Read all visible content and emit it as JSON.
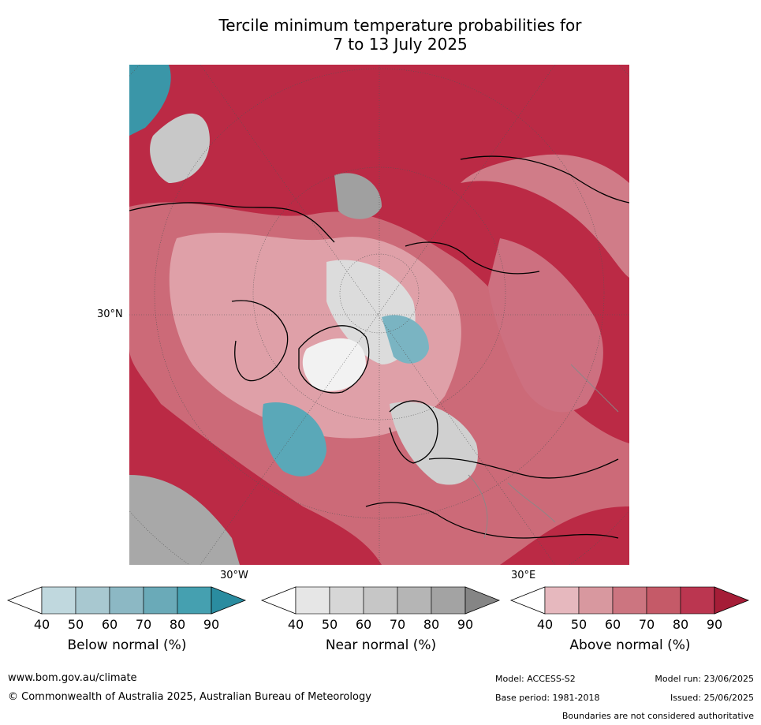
{
  "title_line1": "Tercile minimum temperature probabilities for",
  "title_line2": "7 to 13 July 2025",
  "map": {
    "lat_label": "30°N",
    "lon_label_west": "30°W",
    "lon_label_east": "30°E"
  },
  "legends": [
    {
      "title": "Below normal (%)",
      "ticks": [
        "40",
        "50",
        "60",
        "70",
        "80",
        "90"
      ],
      "colors": [
        "#c0d8de",
        "#a8c8d0",
        "#8cb8c4",
        "#6aaab8",
        "#45a0b0",
        "#2a8ca0"
      ]
    },
    {
      "title": "Near normal (%)",
      "ticks": [
        "40",
        "50",
        "60",
        "70",
        "80",
        "90"
      ],
      "colors": [
        "#e6e6e6",
        "#d6d6d6",
        "#c6c6c6",
        "#b5b5b5",
        "#a3a3a3",
        "#858585"
      ]
    },
    {
      "title": "Above normal (%)",
      "ticks": [
        "40",
        "50",
        "60",
        "70",
        "80",
        "90"
      ],
      "colors": [
        "#e6b8be",
        "#d8989f",
        "#cc7580",
        "#c55a68",
        "#bb3650",
        "#a51d37"
      ]
    }
  ],
  "footer": {
    "website": "www.bom.gov.au/climate",
    "copyright": "© Commonwealth of Australia 2025, Australian Bureau of Meteorology",
    "model": "Model: ACCESS-S2",
    "base_period": "Base period: 1981-2018",
    "model_run": "Model run: 23/06/2025",
    "issued": "Issued: 25/06/2025",
    "boundaries_note": "Boundaries are not considered authoritative"
  }
}
